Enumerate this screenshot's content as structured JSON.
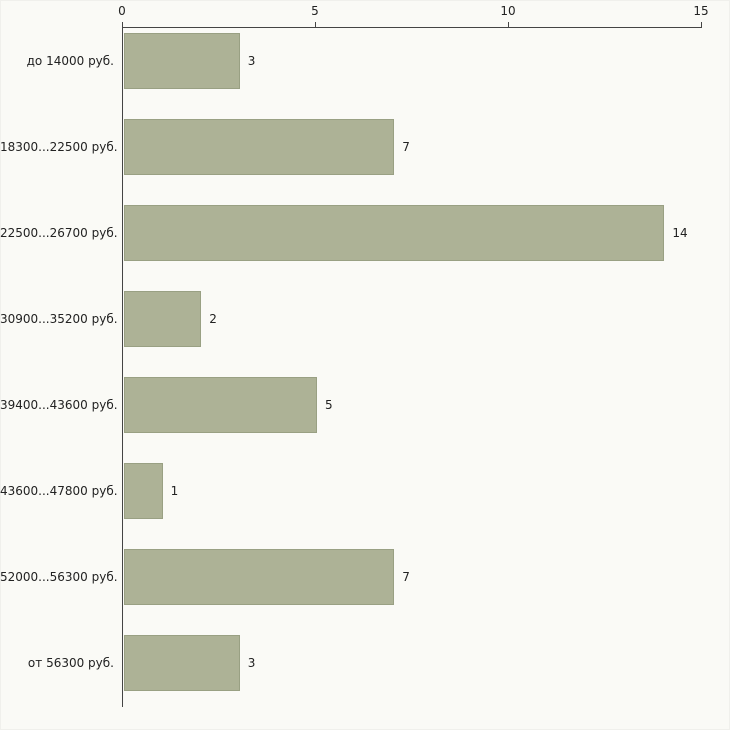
{
  "chart_data": {
    "type": "bar",
    "orientation": "horizontal",
    "title": "",
    "xlabel": "",
    "ylabel": "",
    "categories": [
      "до 14000 руб.",
      "18300...22500 руб.",
      "22500...26700 руб.",
      "30900...35200 руб.",
      "39400...43600 руб.",
      "43600...47800 руб.",
      "52000...56300 руб.",
      "от 56300 руб."
    ],
    "values": [
      3,
      7,
      14,
      2,
      5,
      1,
      7,
      3
    ],
    "xlim": [
      0,
      15
    ],
    "x_ticks": [
      0,
      5,
      10,
      15
    ],
    "grid": false,
    "legend": "none",
    "bar_color": "#adb296",
    "bar_border_color": "#99a083",
    "background_color": "#fafaf6",
    "axis_color": "#444444"
  }
}
